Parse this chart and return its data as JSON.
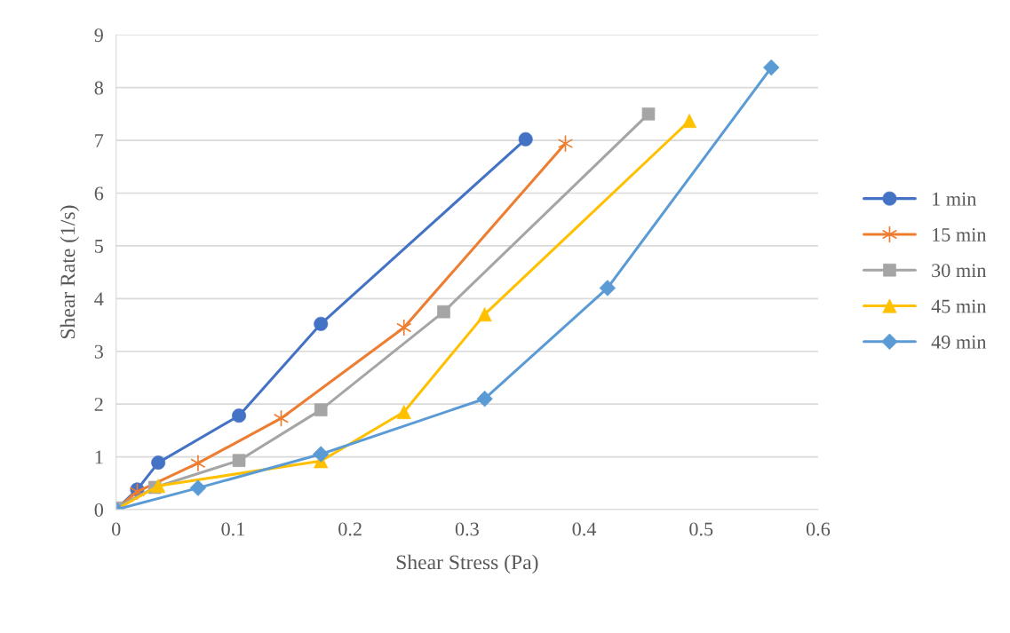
{
  "chart_data": {
    "type": "line",
    "xlabel": "Shear Stress (Pa)",
    "ylabel": "Shear Rate (1/s)",
    "xlim": [
      0,
      0.6
    ],
    "xticks": [
      0,
      0.1,
      0.2,
      0.3,
      0.4,
      0.5,
      0.6
    ],
    "ylim": [
      0,
      9
    ],
    "yticks": [
      0,
      1,
      2,
      3,
      4,
      5,
      6,
      7,
      8,
      9
    ],
    "grid": "y",
    "legend": "right",
    "series": [
      {
        "name": "1 min",
        "color": "#4472c4",
        "marker": "circle",
        "x": [
          0,
          0.018,
          0.036,
          0.105,
          0.175,
          0.35
        ],
        "values": [
          0,
          0.38,
          0.89,
          1.78,
          3.52,
          7.02
        ]
      },
      {
        "name": "15 min",
        "color": "#ed7d31",
        "marker": "cross",
        "x": [
          0,
          0.018,
          0.07,
          0.141,
          0.246,
          0.384
        ],
        "values": [
          0,
          0.34,
          0.88,
          1.73,
          3.45,
          6.94
        ]
      },
      {
        "name": "30 min",
        "color": "#a5a5a5",
        "marker": "square",
        "x": [
          0,
          0.033,
          0.105,
          0.175,
          0.28,
          0.455
        ],
        "values": [
          0.03,
          0.42,
          0.93,
          1.89,
          3.75,
          7.5
        ]
      },
      {
        "name": "45 min",
        "color": "#ffc000",
        "marker": "triangle",
        "x": [
          0,
          0.036,
          0.175,
          0.246,
          0.315,
          0.49
        ],
        "values": [
          0,
          0.45,
          0.92,
          1.85,
          3.7,
          7.37
        ]
      },
      {
        "name": "49 min",
        "color": "#5b9bd5",
        "marker": "diamond",
        "x": [
          0,
          0.07,
          0.175,
          0.315,
          0.42,
          0.56
        ],
        "values": [
          0,
          0.41,
          1.05,
          2.1,
          4.2,
          8.38
        ]
      }
    ]
  }
}
